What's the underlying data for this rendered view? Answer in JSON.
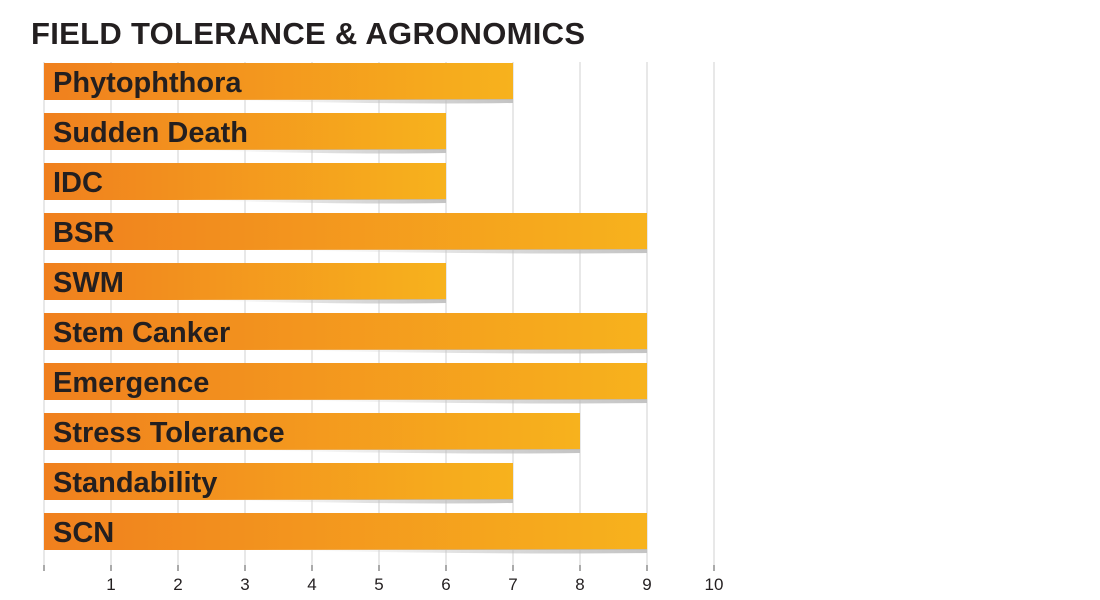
{
  "chart_data": {
    "type": "bar",
    "orientation": "horizontal",
    "title": "FIELD TOLERANCE & AGRONOMICS",
    "xlabel": "",
    "ylabel": "",
    "categories": [
      "Phytophthora",
      "Sudden Death",
      "IDC",
      "BSR",
      "SWM",
      "Stem Canker",
      "Emergence",
      "Stress Tolerance",
      "Standability",
      "SCN"
    ],
    "values": [
      7,
      6,
      6,
      9,
      6,
      9,
      9,
      8,
      7,
      9
    ],
    "xlim": [
      0,
      10
    ],
    "xticks": [
      "1",
      "2",
      "3",
      "4",
      "5",
      "6",
      "7",
      "8",
      "9",
      "10"
    ],
    "grid": "vertical",
    "legend": "none",
    "colors": {
      "bar_start": "#f0801e",
      "bar_end": "#f7b21d",
      "text": "#231f20",
      "grid": "#d2d2d2",
      "shadow": "#bdbdbd"
    }
  }
}
